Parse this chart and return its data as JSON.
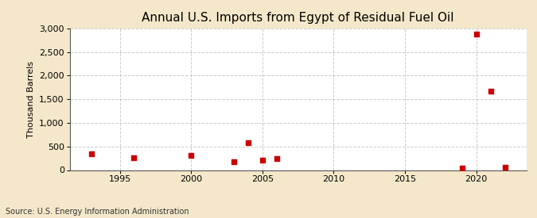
{
  "title": "Annual U.S. Imports from Egypt of Residual Fuel Oil",
  "ylabel": "Thousand Barrels",
  "source": "Source: U.S. Energy Information Administration",
  "background_color": "#f5e8ca",
  "plot_background_color": "#ffffff",
  "data_points": [
    {
      "year": 1993,
      "value": 340
    },
    {
      "year": 1996,
      "value": 265
    },
    {
      "year": 2000,
      "value": 315
    },
    {
      "year": 2003,
      "value": 170
    },
    {
      "year": 2004,
      "value": 575
    },
    {
      "year": 2005,
      "value": 205
    },
    {
      "year": 2006,
      "value": 245
    },
    {
      "year": 2019,
      "value": 50
    },
    {
      "year": 2020,
      "value": 2875
    },
    {
      "year": 2021,
      "value": 1670
    },
    {
      "year": 2022,
      "value": 60
    }
  ],
  "marker_color": "#cc0000",
  "marker_size": 5,
  "marker_style": "s",
  "xlim": [
    1991.5,
    2023.5
  ],
  "ylim": [
    0,
    3000
  ],
  "yticks": [
    0,
    500,
    1000,
    1500,
    2000,
    2500,
    3000
  ],
  "xticks": [
    1995,
    2000,
    2005,
    2010,
    2015,
    2020
  ],
  "grid_color": "#aaaaaa",
  "grid_style": "--",
  "grid_alpha": 0.6,
  "title_fontsize": 11,
  "label_fontsize": 8,
  "tick_fontsize": 8,
  "source_fontsize": 7
}
